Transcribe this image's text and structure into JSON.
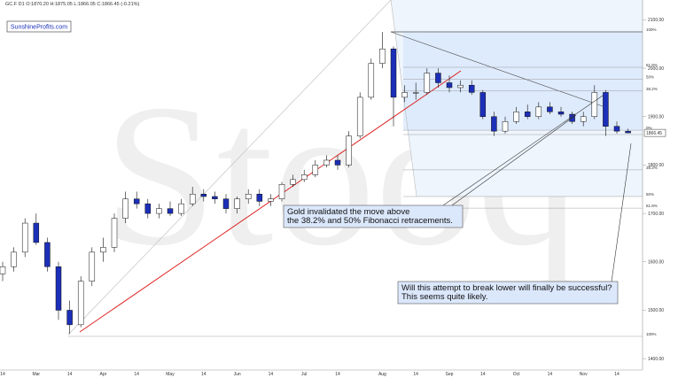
{
  "chart_data": {
    "type": "candlestick",
    "header": "GC.F  D1  O:1870.20  H:1875.05  L:1866.05  C:1866.45  (-0.21%)",
    "brand": "SunshineProfits.com",
    "watermark": "Stooq",
    "annotations": [
      "Gold invalidated the move above\nthe 38.2% and 50% Fibonacci retracements.",
      "Will this attempt to break lower will finally be successful?\nThis seems quite likely."
    ],
    "categories": [
      "14",
      null,
      null,
      "Mar",
      null,
      null,
      "14",
      null,
      null,
      "Apr",
      null,
      null,
      "14",
      null,
      null,
      "May",
      null,
      null,
      "14",
      null,
      null,
      "Jun",
      null,
      null,
      "14",
      null,
      null,
      "Jul",
      null,
      null,
      "14",
      null,
      null,
      null,
      "Aug",
      null,
      null,
      "14",
      null,
      null,
      "Sep",
      null,
      null,
      "14",
      null,
      null,
      "Oct",
      null,
      null,
      "14",
      null,
      null,
      "Nov",
      null,
      null,
      "14",
      null
    ],
    "open": [
      1575,
      1590,
      1620,
      1680,
      1640,
      1590,
      1500,
      1470,
      1560,
      1620,
      1630,
      1690,
      1730,
      1720,
      1700,
      1710,
      1700,
      1720,
      1740,
      1735,
      1730,
      1710,
      1730,
      1740,
      1725,
      1730,
      1760,
      1770,
      1780,
      1800,
      1810,
      1800,
      1860,
      1940,
      2010,
      2040,
      1940,
      1950,
      1950,
      1990,
      1970,
      1960,
      1965,
      1950,
      1900,
      1870,
      1890,
      1910,
      1900,
      1920,
      1910,
      1905,
      1890,
      1900,
      1950,
      1880,
      1870
    ],
    "high": [
      1600,
      1630,
      1690,
      1700,
      1650,
      1600,
      1520,
      1570,
      1630,
      1650,
      1700,
      1745,
      1745,
      1730,
      1720,
      1725,
      1730,
      1755,
      1750,
      1745,
      1740,
      1735,
      1750,
      1750,
      1740,
      1765,
      1780,
      1790,
      1810,
      1820,
      1820,
      1870,
      1950,
      2020,
      2075,
      2045,
      1965,
      1970,
      2000,
      2000,
      1985,
      1975,
      1975,
      1955,
      1910,
      1900,
      1920,
      1925,
      1930,
      1930,
      1920,
      1910,
      1910,
      1965,
      1955,
      1890,
      1875
    ],
    "low": [
      1560,
      1580,
      1610,
      1635,
      1580,
      1480,
      1451,
      1465,
      1550,
      1600,
      1620,
      1680,
      1710,
      1690,
      1690,
      1695,
      1695,
      1715,
      1725,
      1720,
      1700,
      1700,
      1720,
      1715,
      1715,
      1725,
      1755,
      1765,
      1775,
      1795,
      1790,
      1795,
      1855,
      1935,
      2000,
      1880,
      1930,
      1935,
      1945,
      1960,
      1950,
      1950,
      1945,
      1895,
      1860,
      1865,
      1885,
      1895,
      1895,
      1905,
      1900,
      1885,
      1880,
      1895,
      1860,
      1865,
      1866
    ],
    "close": [
      1590,
      1620,
      1680,
      1640,
      1590,
      1500,
      1470,
      1560,
      1620,
      1630,
      1690,
      1730,
      1720,
      1700,
      1710,
      1700,
      1720,
      1740,
      1735,
      1730,
      1710,
      1730,
      1740,
      1725,
      1730,
      1760,
      1770,
      1780,
      1800,
      1810,
      1800,
      1860,
      1940,
      2010,
      2040,
      1940,
      1950,
      1950,
      1990,
      1970,
      1960,
      1965,
      1950,
      1900,
      1870,
      1890,
      1910,
      1900,
      1920,
      1910,
      1905,
      1890,
      1900,
      1950,
      1880,
      1870,
      1866.45
    ],
    "up_color": "#ffffff",
    "down_color": "#1c2fb8",
    "ylim": [
      1360,
      2141
    ],
    "yticks": [
      {
        "value": 1400,
        "label": "1400.00"
      },
      {
        "value": 1500,
        "label": "1500.00"
      },
      {
        "value": 1600,
        "label": "1600.00"
      },
      {
        "value": 1700,
        "label": "1700.00"
      },
      {
        "value": 1800,
        "label": "1800.00"
      },
      {
        "value": 1900,
        "label": "1900.00"
      },
      {
        "value": 2000,
        "label": "2000.00"
      },
      {
        "value": 2100,
        "label": "2100.00"
      }
    ],
    "fib_levels": [
      {
        "value": 2075,
        "label": "100%"
      },
      {
        "value": 2002,
        "label": "61.8%"
      },
      {
        "value": 1977,
        "label": "50%"
      },
      {
        "value": 1953,
        "label": "38.2%"
      },
      {
        "value": 1872,
        "label": "0%"
      },
      {
        "value": 1863,
        "label": "23.6%"
      },
      {
        "value": 1790,
        "label": "38.2%"
      },
      {
        "value": 1735,
        "label": "50%"
      },
      {
        "value": 1711,
        "label": "61.8%"
      },
      {
        "value": 1446,
        "label": "100%"
      }
    ],
    "last_price": 1866.45
  }
}
